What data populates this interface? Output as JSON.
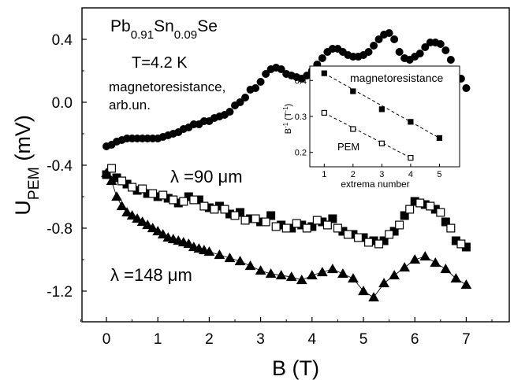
{
  "chart_data": [
    {
      "type": "scatter",
      "title": "",
      "xlabel": "B (T)",
      "ylabel_main": "U",
      "ylabel_sub": "PEM",
      "ylabel_unit": " (mV)",
      "xlim": [
        -0.5,
        8
      ],
      "ylim": [
        -1.4,
        0.6
      ],
      "xticks": [
        0,
        1,
        2,
        3,
        4,
        5,
        6,
        7,
        8
      ],
      "yticks": [
        0.4,
        0.0,
        -0.4,
        -0.8,
        -1.2
      ],
      "ytick_labels": [
        "0.4",
        "0.0",
        "-0.4",
        "-0.8",
        "-1.2"
      ],
      "grid": false,
      "annotations": {
        "formula": {
          "pb": "Pb",
          "pb_sub": "0.91",
          "sn": "Sn",
          "sn_sub": "0.09",
          "se": "Se"
        },
        "temperature": "T=4.2 K",
        "mr_line1": "magnetoresistance,",
        "mr_line2": "arb.un.",
        "lambda90": "λ =90 μm",
        "lambda148": "λ =148 μm"
      },
      "series": [
        {
          "marker": "circle-filled",
          "points": [
            [
              0.0,
              -0.28
            ],
            [
              0.1,
              -0.27
            ],
            [
              0.2,
              -0.25
            ],
            [
              0.3,
              -0.24
            ],
            [
              0.4,
              -0.23
            ],
            [
              0.5,
              -0.23
            ],
            [
              0.6,
              -0.23
            ],
            [
              0.7,
              -0.23
            ],
            [
              0.8,
              -0.23
            ],
            [
              0.9,
              -0.23
            ],
            [
              1.0,
              -0.23
            ],
            [
              1.1,
              -0.22
            ],
            [
              1.2,
              -0.21
            ],
            [
              1.3,
              -0.2
            ],
            [
              1.4,
              -0.19
            ],
            [
              1.5,
              -0.17
            ],
            [
              1.6,
              -0.16
            ],
            [
              1.7,
              -0.14
            ],
            [
              1.8,
              -0.14
            ],
            [
              1.9,
              -0.12
            ],
            [
              2.0,
              -0.12
            ],
            [
              2.1,
              -0.1
            ],
            [
              2.2,
              -0.09
            ],
            [
              2.3,
              -0.08
            ],
            [
              2.4,
              -0.06
            ],
            [
              2.5,
              -0.02
            ],
            [
              2.6,
              -0.0
            ],
            [
              2.7,
              0.03
            ],
            [
              2.8,
              0.08
            ],
            [
              2.9,
              0.09
            ],
            [
              3.0,
              0.13
            ],
            [
              3.1,
              0.18
            ],
            [
              3.2,
              0.21
            ],
            [
              3.3,
              0.22
            ],
            [
              3.4,
              0.21
            ],
            [
              3.5,
              0.18
            ],
            [
              3.6,
              0.17
            ],
            [
              3.7,
              0.16
            ],
            [
              3.8,
              0.15
            ],
            [
              3.9,
              0.17
            ],
            [
              4.0,
              0.2
            ],
            [
              4.1,
              0.24
            ],
            [
              4.2,
              0.28
            ],
            [
              4.3,
              0.32
            ],
            [
              4.4,
              0.34
            ],
            [
              4.5,
              0.34
            ],
            [
              4.6,
              0.32
            ],
            [
              4.7,
              0.3
            ],
            [
              4.8,
              0.29
            ],
            [
              4.9,
              0.29
            ],
            [
              5.0,
              0.3
            ],
            [
              5.1,
              0.32
            ],
            [
              5.2,
              0.36
            ],
            [
              5.3,
              0.4
            ],
            [
              5.4,
              0.43
            ],
            [
              5.5,
              0.44
            ],
            [
              5.6,
              0.4
            ],
            [
              5.7,
              0.32
            ],
            [
              5.8,
              0.28
            ],
            [
              5.9,
              0.27
            ],
            [
              6.0,
              0.29
            ],
            [
              6.1,
              0.31
            ],
            [
              6.2,
              0.35
            ],
            [
              6.3,
              0.38
            ],
            [
              6.4,
              0.38
            ],
            [
              6.5,
              0.37
            ],
            [
              6.6,
              0.33
            ],
            [
              6.7,
              0.27
            ],
            [
              6.8,
              0.2
            ],
            [
              6.9,
              0.15
            ],
            [
              7.0,
              0.09
            ]
          ]
        },
        {
          "marker": "square-filled",
          "points": [
            [
              0.0,
              -0.46
            ],
            [
              0.2,
              -0.48
            ],
            [
              0.4,
              -0.52
            ],
            [
              0.6,
              -0.56
            ],
            [
              0.8,
              -0.58
            ],
            [
              1.0,
              -0.6
            ],
            [
              1.2,
              -0.61
            ],
            [
              1.4,
              -0.64
            ],
            [
              1.6,
              -0.6
            ],
            [
              1.8,
              -0.62
            ],
            [
              2.0,
              -0.67
            ],
            [
              2.2,
              -0.66
            ],
            [
              2.4,
              -0.71
            ],
            [
              2.6,
              -0.7
            ],
            [
              2.8,
              -0.74
            ],
            [
              3.0,
              -0.76
            ],
            [
              3.2,
              -0.72
            ],
            [
              3.4,
              -0.78
            ],
            [
              3.6,
              -0.8
            ],
            [
              3.8,
              -0.78
            ],
            [
              4.0,
              -0.79
            ],
            [
              4.2,
              -0.76
            ],
            [
              4.4,
              -0.74
            ],
            [
              4.6,
              -0.82
            ],
            [
              4.8,
              -0.84
            ],
            [
              5.0,
              -0.86
            ],
            [
              5.2,
              -0.88
            ],
            [
              5.4,
              -0.88
            ],
            [
              5.6,
              -0.82
            ],
            [
              5.8,
              -0.72
            ],
            [
              6.0,
              -0.63
            ],
            [
              6.2,
              -0.65
            ],
            [
              6.4,
              -0.68
            ],
            [
              6.6,
              -0.76
            ],
            [
              6.8,
              -0.88
            ],
            [
              7.0,
              -0.92
            ]
          ]
        },
        {
          "marker": "square-open",
          "points": [
            [
              0.1,
              -0.42
            ],
            [
              0.3,
              -0.5
            ],
            [
              0.5,
              -0.54
            ],
            [
              0.7,
              -0.55
            ],
            [
              0.9,
              -0.58
            ],
            [
              1.1,
              -0.59
            ],
            [
              1.3,
              -0.62
            ],
            [
              1.5,
              -0.63
            ],
            [
              1.7,
              -0.62
            ],
            [
              1.9,
              -0.66
            ],
            [
              2.1,
              -0.68
            ],
            [
              2.3,
              -0.68
            ],
            [
              2.5,
              -0.72
            ],
            [
              2.7,
              -0.75
            ],
            [
              2.9,
              -0.74
            ],
            [
              3.1,
              -0.76
            ],
            [
              3.3,
              -0.79
            ],
            [
              3.5,
              -0.8
            ],
            [
              3.7,
              -0.77
            ],
            [
              3.9,
              -0.8
            ],
            [
              4.1,
              -0.75
            ],
            [
              4.3,
              -0.78
            ],
            [
              4.5,
              -0.8
            ],
            [
              4.7,
              -0.84
            ],
            [
              4.9,
              -0.86
            ],
            [
              5.1,
              -0.89
            ],
            [
              5.3,
              -0.9
            ],
            [
              5.5,
              -0.84
            ],
            [
              5.7,
              -0.78
            ],
            [
              5.9,
              -0.68
            ],
            [
              6.1,
              -0.64
            ],
            [
              6.3,
              -0.66
            ],
            [
              6.5,
              -0.7
            ],
            [
              6.7,
              -0.8
            ],
            [
              6.9,
              -0.9
            ]
          ]
        },
        {
          "marker": "triangle-filled",
          "line": true,
          "points": [
            [
              0.0,
              -0.45
            ],
            [
              0.1,
              -0.5
            ],
            [
              0.2,
              -0.6
            ],
            [
              0.3,
              -0.66
            ],
            [
              0.4,
              -0.7
            ],
            [
              0.5,
              -0.72
            ],
            [
              0.6,
              -0.74
            ],
            [
              0.7,
              -0.76
            ],
            [
              0.8,
              -0.78
            ],
            [
              0.9,
              -0.8
            ],
            [
              1.0,
              -0.82
            ],
            [
              1.1,
              -0.84
            ],
            [
              1.2,
              -0.86
            ],
            [
              1.3,
              -0.87
            ],
            [
              1.4,
              -0.88
            ],
            [
              1.5,
              -0.89
            ],
            [
              1.6,
              -0.9
            ],
            [
              1.7,
              -0.92
            ],
            [
              1.8,
              -0.93
            ],
            [
              1.9,
              -0.94
            ],
            [
              2.0,
              -0.95
            ],
            [
              2.2,
              -0.97
            ],
            [
              2.4,
              -0.99
            ],
            [
              2.6,
              -1.01
            ],
            [
              2.8,
              -1.04
            ],
            [
              3.0,
              -1.07
            ],
            [
              3.2,
              -1.09
            ],
            [
              3.4,
              -1.1
            ],
            [
              3.6,
              -1.11
            ],
            [
              3.8,
              -1.13
            ],
            [
              4.0,
              -1.1
            ],
            [
              4.2,
              -1.08
            ],
            [
              4.4,
              -1.06
            ],
            [
              4.6,
              -1.09
            ],
            [
              4.8,
              -1.12
            ],
            [
              5.0,
              -1.2
            ],
            [
              5.2,
              -1.24
            ],
            [
              5.4,
              -1.15
            ],
            [
              5.6,
              -1.1
            ],
            [
              5.8,
              -1.05
            ],
            [
              6.0,
              -1.0
            ],
            [
              6.2,
              -0.98
            ],
            [
              6.4,
              -1.02
            ],
            [
              6.6,
              -1.06
            ],
            [
              6.8,
              -1.12
            ],
            [
              7.0,
              -1.16
            ]
          ]
        }
      ]
    },
    {
      "type": "scatter",
      "inset": true,
      "xlabel": "extrema number",
      "ylabel": "B",
      "ylabel_exp": "-1",
      "ylabel_unit": " (T",
      "ylabel_unit_exp": "-1",
      "ylabel_close": ")",
      "xlim": [
        0.5,
        5.7
      ],
      "ylim": [
        0.16,
        0.44
      ],
      "xticks": [
        1,
        2,
        3,
        4,
        5
      ],
      "yticks": [
        0.2,
        0.3,
        0.4
      ],
      "ytick_labels": [
        "0.2",
        "0.3",
        "0.4"
      ],
      "series": [
        {
          "name": "magnetoresistance",
          "marker": "square-filled",
          "line": "dashed",
          "points": [
            [
              1,
              0.42
            ],
            [
              2,
              0.37
            ],
            [
              3,
              0.32
            ],
            [
              4,
              0.285
            ],
            [
              5,
              0.24
            ]
          ]
        },
        {
          "name": "PEM",
          "marker": "square-open",
          "line": "dashed",
          "points": [
            [
              1,
              0.31
            ],
            [
              2,
              0.265
            ],
            [
              3,
              0.225
            ],
            [
              4,
              0.185
            ]
          ]
        }
      ]
    }
  ]
}
